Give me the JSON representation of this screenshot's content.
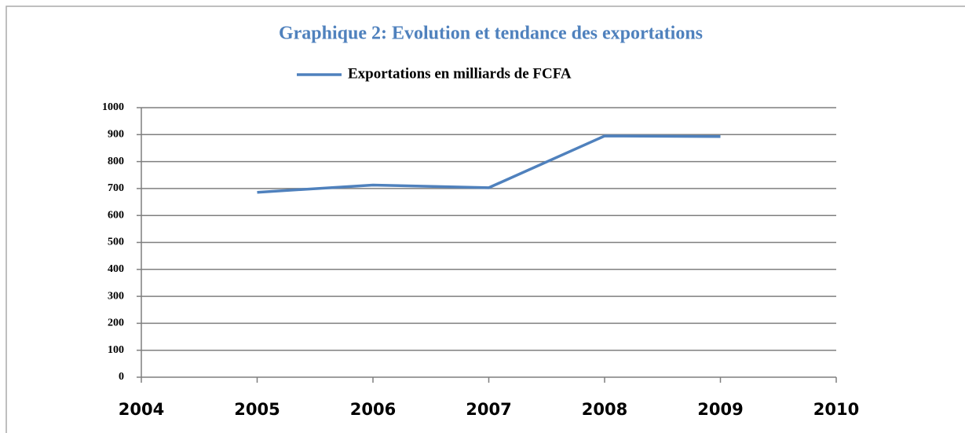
{
  "chart_data": {
    "type": "line",
    "title": "Graphique 2: Evolution et tendance des exportations",
    "x": [
      2005,
      2006,
      2007,
      2008,
      2009
    ],
    "series": [
      {
        "name": "Exportations en milliards de FCFA",
        "color": "#4f81bd",
        "values": [
          686,
          713,
          703,
          895,
          893
        ]
      }
    ],
    "xlim": [
      2004,
      2010
    ],
    "xticks": [
      2004,
      2005,
      2006,
      2007,
      2008,
      2009,
      2010
    ],
    "ylim": [
      0,
      1000
    ],
    "yticks": [
      0,
      100,
      200,
      300,
      400,
      500,
      600,
      700,
      800,
      900,
      1000
    ],
    "grid": true,
    "legend": "top"
  }
}
